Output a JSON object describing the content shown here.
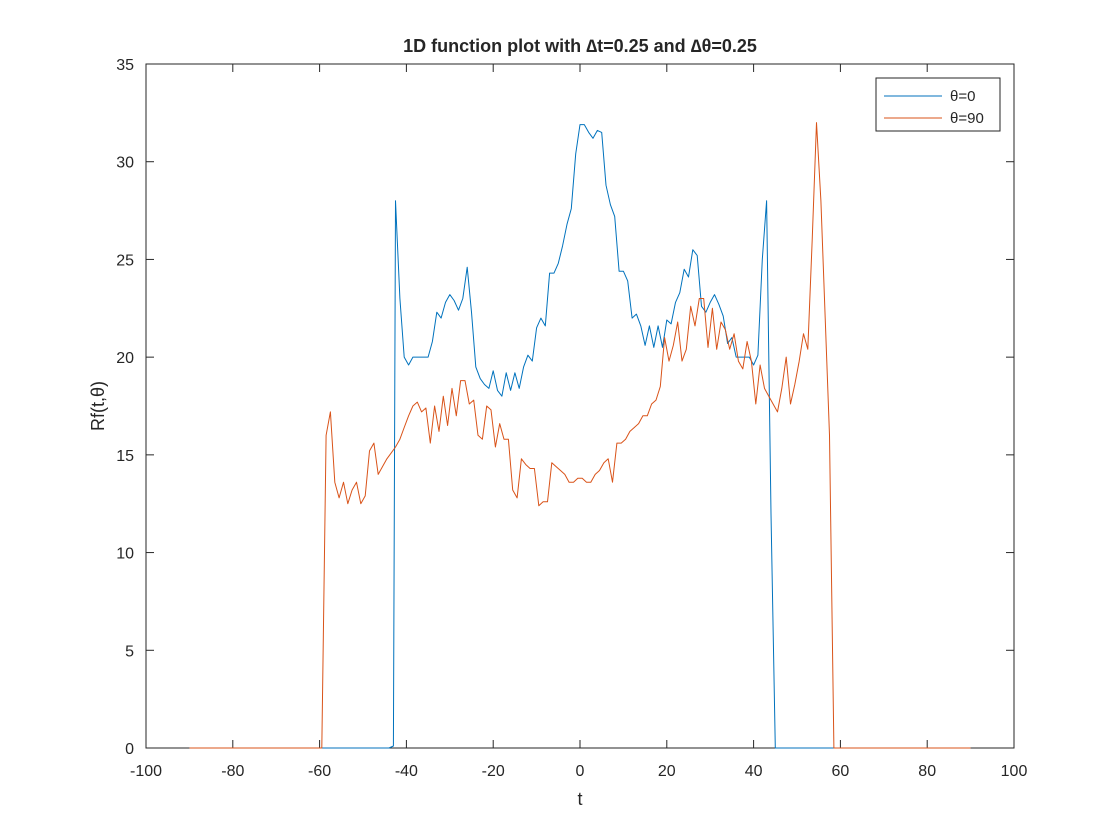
{
  "chart_data": {
    "type": "line",
    "title": "1D function plot with ∆t=0.25 and ∆θ=0.25",
    "xlabel": "t",
    "ylabel": "Rf(t,θ)",
    "xlim": [
      -100,
      100
    ],
    "ylim": [
      0,
      35
    ],
    "xticks": [
      -100,
      -80,
      -60,
      -40,
      -20,
      0,
      20,
      40,
      60,
      80,
      100
    ],
    "yticks": [
      0,
      5,
      10,
      15,
      20,
      25,
      30,
      35
    ],
    "grid": false,
    "legend_position": "top-right",
    "series": [
      {
        "name": "θ=0",
        "color": "#0072BD",
        "points": [
          [
            -90,
            0
          ],
          [
            -44,
            0
          ],
          [
            -43,
            0.1
          ],
          [
            -42.5,
            28
          ],
          [
            -41.5,
            23
          ],
          [
            -40.5,
            20
          ],
          [
            -39.5,
            19.6
          ],
          [
            -38.5,
            20
          ],
          [
            -37,
            20
          ],
          [
            -36,
            20
          ],
          [
            -35,
            20
          ],
          [
            -34,
            20.8
          ],
          [
            -33,
            22.3
          ],
          [
            -32,
            22
          ],
          [
            -31,
            22.8
          ],
          [
            -30,
            23.2
          ],
          [
            -29,
            22.9
          ],
          [
            -28,
            22.4
          ],
          [
            -27,
            23
          ],
          [
            -26,
            24.6
          ],
          [
            -25,
            22.3
          ],
          [
            -24,
            19.5
          ],
          [
            -23,
            18.9
          ],
          [
            -22,
            18.6
          ],
          [
            -21,
            18.4
          ],
          [
            -20,
            19.3
          ],
          [
            -19,
            18.3
          ],
          [
            -18,
            18
          ],
          [
            -17,
            19.2
          ],
          [
            -16,
            18.3
          ],
          [
            -15,
            19.2
          ],
          [
            -14,
            18.4
          ],
          [
            -13,
            19.5
          ],
          [
            -12,
            20.1
          ],
          [
            -11,
            19.8
          ],
          [
            -10,
            21.5
          ],
          [
            -9,
            22
          ],
          [
            -8,
            21.6
          ],
          [
            -7,
            24.3
          ],
          [
            -6,
            24.3
          ],
          [
            -5,
            24.8
          ],
          [
            -4,
            25.7
          ],
          [
            -3,
            26.8
          ],
          [
            -2,
            27.6
          ],
          [
            -1,
            30.4
          ],
          [
            0,
            31.9
          ],
          [
            1,
            31.9
          ],
          [
            2,
            31.5
          ],
          [
            3,
            31.2
          ],
          [
            4,
            31.6
          ],
          [
            5,
            31.5
          ],
          [
            6,
            28.8
          ],
          [
            7,
            27.8
          ],
          [
            8,
            27.2
          ],
          [
            9,
            24.4
          ],
          [
            10,
            24.4
          ],
          [
            11,
            23.9
          ],
          [
            12,
            22
          ],
          [
            13,
            22.2
          ],
          [
            14,
            21.6
          ],
          [
            15,
            20.6
          ],
          [
            16,
            21.6
          ],
          [
            17,
            20.5
          ],
          [
            18,
            21.6
          ],
          [
            19,
            20.5
          ],
          [
            20,
            21.9
          ],
          [
            21,
            21.7
          ],
          [
            22,
            22.8
          ],
          [
            23,
            23.3
          ],
          [
            24,
            24.5
          ],
          [
            25,
            24.1
          ],
          [
            26,
            25.5
          ],
          [
            27,
            25.2
          ],
          [
            28,
            22.6
          ],
          [
            29,
            22.3
          ],
          [
            30,
            22.8
          ],
          [
            31,
            23.2
          ],
          [
            32,
            22.7
          ],
          [
            33,
            22.1
          ],
          [
            34,
            20.7
          ],
          [
            35,
            21
          ],
          [
            36,
            20
          ],
          [
            37,
            20
          ],
          [
            38,
            20
          ],
          [
            39,
            20
          ],
          [
            40,
            19.6
          ],
          [
            41,
            20.1
          ],
          [
            42,
            25
          ],
          [
            43,
            28
          ],
          [
            44,
            12
          ],
          [
            45,
            0
          ],
          [
            90,
            0
          ]
        ]
      },
      {
        "name": "θ=90",
        "color": "#D95319",
        "points": [
          [
            -90,
            0
          ],
          [
            -59.5,
            0
          ],
          [
            -58.5,
            16
          ],
          [
            -57.5,
            17.2
          ],
          [
            -56.5,
            13.6
          ],
          [
            -55.5,
            12.8
          ],
          [
            -54.5,
            13.6
          ],
          [
            -53.5,
            12.5
          ],
          [
            -52.5,
            13.2
          ],
          [
            -51.5,
            13.6
          ],
          [
            -50.5,
            12.5
          ],
          [
            -49.5,
            12.9
          ],
          [
            -48.5,
            15.2
          ],
          [
            -47.5,
            15.6
          ],
          [
            -46.5,
            14
          ],
          [
            -45.5,
            14.4
          ],
          [
            -44.5,
            14.8
          ],
          [
            -43.5,
            15.1
          ],
          [
            -42.5,
            15.4
          ],
          [
            -41.5,
            15.8
          ],
          [
            -40.5,
            16.4
          ],
          [
            -39.5,
            17
          ],
          [
            -38.5,
            17.5
          ],
          [
            -37.5,
            17.7
          ],
          [
            -36.5,
            17.2
          ],
          [
            -35.5,
            17.4
          ],
          [
            -34.5,
            15.6
          ],
          [
            -33.5,
            17.5
          ],
          [
            -32.5,
            16.2
          ],
          [
            -31.5,
            18
          ],
          [
            -30.5,
            16.5
          ],
          [
            -29.5,
            18.4
          ],
          [
            -28.5,
            17
          ],
          [
            -27.5,
            18.8
          ],
          [
            -26.5,
            18.8
          ],
          [
            -25.5,
            17.6
          ],
          [
            -24.5,
            17.8
          ],
          [
            -23.5,
            16
          ],
          [
            -22.5,
            15.8
          ],
          [
            -21.5,
            17.5
          ],
          [
            -20.5,
            17.3
          ],
          [
            -19.5,
            15.4
          ],
          [
            -18.5,
            16.6
          ],
          [
            -17.5,
            15.8
          ],
          [
            -16.5,
            15.8
          ],
          [
            -15.5,
            13.2
          ],
          [
            -14.5,
            12.8
          ],
          [
            -13.5,
            14.8
          ],
          [
            -12.5,
            14.5
          ],
          [
            -11.5,
            14.3
          ],
          [
            -10.5,
            14.3
          ],
          [
            -9.5,
            12.4
          ],
          [
            -8.5,
            12.6
          ],
          [
            -7.5,
            12.6
          ],
          [
            -6.5,
            14.6
          ],
          [
            -5.5,
            14.4
          ],
          [
            -4.5,
            14.2
          ],
          [
            -3.5,
            14
          ],
          [
            -2.5,
            13.6
          ],
          [
            -1.5,
            13.6
          ],
          [
            -0.5,
            13.8
          ],
          [
            0.5,
            13.8
          ],
          [
            1.5,
            13.6
          ],
          [
            2.5,
            13.6
          ],
          [
            3.5,
            14
          ],
          [
            4.5,
            14.2
          ],
          [
            5.5,
            14.6
          ],
          [
            6.5,
            14.8
          ],
          [
            7.5,
            13.6
          ],
          [
            8.5,
            15.6
          ],
          [
            9.5,
            15.6
          ],
          [
            10.5,
            15.8
          ],
          [
            11.5,
            16.2
          ],
          [
            12.5,
            16.4
          ],
          [
            13.5,
            16.6
          ],
          [
            14.5,
            17
          ],
          [
            15.5,
            17
          ],
          [
            16.5,
            17.6
          ],
          [
            17.5,
            17.8
          ],
          [
            18.5,
            18.5
          ],
          [
            19.5,
            21
          ],
          [
            20.5,
            19.8
          ],
          [
            21.5,
            20.6
          ],
          [
            22.5,
            21.8
          ],
          [
            23.5,
            19.8
          ],
          [
            24.5,
            20.4
          ],
          [
            25.5,
            22.6
          ],
          [
            26.5,
            21.6
          ],
          [
            27.5,
            23
          ],
          [
            28.5,
            23
          ],
          [
            29.5,
            20.5
          ],
          [
            30.5,
            22.5
          ],
          [
            31.5,
            20.4
          ],
          [
            32.5,
            21.8
          ],
          [
            33.5,
            21.4
          ],
          [
            34.5,
            20.4
          ],
          [
            35.5,
            21.2
          ],
          [
            36.5,
            19.8
          ],
          [
            37.5,
            19.4
          ],
          [
            38.5,
            20.8
          ],
          [
            39.5,
            19.8
          ],
          [
            40.5,
            17.6
          ],
          [
            41.5,
            19.6
          ],
          [
            42.5,
            18.4
          ],
          [
            43.5,
            18
          ],
          [
            44.5,
            17.6
          ],
          [
            45.5,
            17.2
          ],
          [
            46.5,
            18.4
          ],
          [
            47.5,
            20
          ],
          [
            48.5,
            17.6
          ],
          [
            49.5,
            18.6
          ],
          [
            50.5,
            19.8
          ],
          [
            51.5,
            21.2
          ],
          [
            52.5,
            20.4
          ],
          [
            53.5,
            26
          ],
          [
            54.5,
            32
          ],
          [
            55.5,
            28
          ],
          [
            56.5,
            22
          ],
          [
            57.5,
            16
          ],
          [
            58.5,
            0
          ],
          [
            90,
            0
          ]
        ]
      }
    ]
  }
}
